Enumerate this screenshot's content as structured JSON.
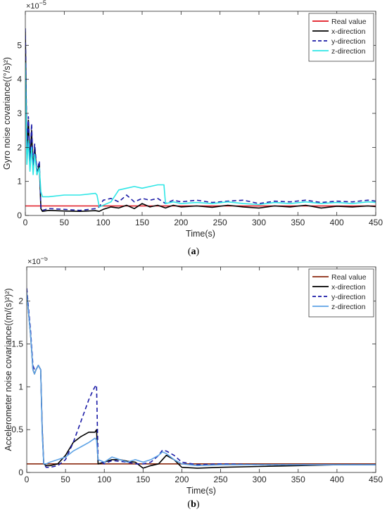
{
  "chart_data": [
    {
      "type": "line",
      "caption_prefix": "(",
      "caption_letter": "a",
      "caption_suffix": ")",
      "exponent": "×10",
      "exponent_power": "−5",
      "xlabel": "Time(s)",
      "ylabel": "Gyro noise covariance((°/s)²)",
      "xlim": [
        0,
        450
      ],
      "ylim": [
        0,
        6
      ],
      "xticks": [
        0,
        50,
        100,
        150,
        200,
        250,
        300,
        350,
        400,
        450
      ],
      "yticks": [
        0,
        1,
        2,
        3,
        4,
        5
      ],
      "legend_position": "top-right",
      "grid": false,
      "series": [
        {
          "name": "Real value",
          "color": "#e0151f",
          "dash": "solid",
          "x": [
            0,
            450
          ],
          "y": [
            0.28,
            0.28
          ]
        },
        {
          "name": "x-direction",
          "color": "#000000",
          "dash": "solid",
          "x": [
            0,
            2,
            4,
            6,
            8,
            10,
            12,
            15,
            18,
            20,
            22,
            30,
            50,
            70,
            90,
            95,
            100,
            110,
            120,
            130,
            140,
            150,
            160,
            170,
            180,
            190,
            200,
            220,
            240,
            260,
            280,
            300,
            320,
            340,
            360,
            380,
            400,
            420,
            440,
            450
          ],
          "y": [
            5.4,
            1.8,
            2.8,
            1.5,
            2.5,
            1.3,
            2.0,
            1.2,
            1.5,
            0.2,
            0.12,
            0.15,
            0.13,
            0.12,
            0.14,
            0.12,
            0.18,
            0.25,
            0.22,
            0.3,
            0.2,
            0.35,
            0.25,
            0.3,
            0.22,
            0.3,
            0.25,
            0.28,
            0.24,
            0.3,
            0.25,
            0.22,
            0.28,
            0.25,
            0.3,
            0.22,
            0.27,
            0.25,
            0.28,
            0.26
          ]
        },
        {
          "name": "y-direction",
          "color": "#1a1aa6",
          "dash": "dashed",
          "x": [
            0,
            2,
            4,
            6,
            8,
            10,
            12,
            15,
            18,
            20,
            22,
            30,
            50,
            70,
            90,
            95,
            100,
            110,
            120,
            130,
            140,
            150,
            160,
            170,
            180,
            190,
            200,
            220,
            240,
            260,
            280,
            300,
            320,
            340,
            360,
            380,
            400,
            420,
            440,
            450
          ],
          "y": [
            5.5,
            2.0,
            2.9,
            1.6,
            2.7,
            1.4,
            2.1,
            1.3,
            1.6,
            0.25,
            0.15,
            0.2,
            0.18,
            0.15,
            0.2,
            0.25,
            0.45,
            0.5,
            0.4,
            0.6,
            0.4,
            0.5,
            0.45,
            0.5,
            0.35,
            0.45,
            0.4,
            0.45,
            0.38,
            0.42,
            0.45,
            0.35,
            0.42,
            0.4,
            0.45,
            0.38,
            0.42,
            0.4,
            0.45,
            0.42
          ]
        },
        {
          "name": "z-direction",
          "color": "#2ee6e6",
          "dash": "solid",
          "x": [
            0,
            2,
            4,
            6,
            8,
            10,
            12,
            15,
            18,
            20,
            22,
            30,
            50,
            70,
            90,
            92,
            95,
            100,
            110,
            120,
            130,
            140,
            150,
            160,
            170,
            178,
            180,
            190,
            200,
            220,
            240,
            260,
            280,
            300,
            320,
            340,
            360,
            380,
            400,
            420,
            440,
            450
          ],
          "y": [
            4.5,
            1.5,
            2.2,
            1.3,
            2.0,
            1.2,
            1.8,
            1.2,
            1.4,
            0.7,
            0.55,
            0.55,
            0.6,
            0.6,
            0.65,
            0.6,
            0.25,
            0.3,
            0.4,
            0.75,
            0.8,
            0.85,
            0.8,
            0.85,
            0.9,
            0.9,
            0.35,
            0.4,
            0.35,
            0.38,
            0.35,
            0.4,
            0.35,
            0.32,
            0.38,
            0.35,
            0.4,
            0.35,
            0.38,
            0.35,
            0.4,
            0.38
          ]
        }
      ]
    },
    {
      "type": "line",
      "caption_prefix": "(",
      "caption_letter": "b",
      "caption_suffix": ")",
      "exponent": "×10",
      "exponent_power": "−5",
      "xlabel": "Time(s)",
      "ylabel": "Accelerometer noise covariance((m/(s)²)²)",
      "xlim": [
        0,
        450
      ],
      "ylim": [
        0,
        2.4
      ],
      "xticks": [
        0,
        50,
        100,
        150,
        200,
        250,
        300,
        350,
        400,
        450
      ],
      "yticks": [
        0,
        0.5,
        1,
        1.5,
        2
      ],
      "ytick_labels": [
        "0",
        "0.5",
        "1",
        "1.5",
        "2"
      ],
      "legend_position": "top-right",
      "grid": false,
      "series": [
        {
          "name": "Real value",
          "color": "#8b2a10",
          "dash": "solid",
          "x": [
            0,
            450
          ],
          "y": [
            0.1,
            0.1
          ]
        },
        {
          "name": "x-direction",
          "color": "#000000",
          "dash": "solid",
          "x": [
            0,
            5,
            8,
            10,
            12,
            15,
            18,
            20,
            22,
            25,
            30,
            40,
            50,
            60,
            70,
            80,
            88,
            90,
            92,
            100,
            110,
            120,
            130,
            140,
            150,
            160,
            170,
            180,
            190,
            200,
            220,
            250,
            300,
            350,
            400,
            450
          ],
          "y": [
            2.1,
            1.6,
            1.2,
            1.15,
            1.2,
            1.25,
            1.2,
            0.5,
            0.1,
            0.08,
            0.08,
            0.1,
            0.2,
            0.35,
            0.42,
            0.47,
            0.47,
            0.5,
            0.1,
            0.12,
            0.15,
            0.15,
            0.13,
            0.12,
            0.05,
            0.08,
            0.1,
            0.2,
            0.15,
            0.06,
            0.05,
            0.06,
            0.07,
            0.08,
            0.09,
            0.09
          ]
        },
        {
          "name": "y-direction",
          "color": "#1a1aa6",
          "dash": "dashed",
          "x": [
            0,
            5,
            8,
            10,
            12,
            15,
            18,
            20,
            22,
            25,
            30,
            40,
            50,
            60,
            70,
            80,
            85,
            88,
            90,
            92,
            100,
            110,
            120,
            130,
            140,
            150,
            160,
            170,
            175,
            180,
            190,
            200,
            220,
            250,
            300,
            350,
            400,
            450
          ],
          "y": [
            2.15,
            1.65,
            1.25,
            1.2,
            1.2,
            1.25,
            1.2,
            0.5,
            0.1,
            0.06,
            0.06,
            0.08,
            0.15,
            0.35,
            0.6,
            0.85,
            0.95,
            1.0,
            1.02,
            0.15,
            0.1,
            0.14,
            0.13,
            0.12,
            0.1,
            0.1,
            0.12,
            0.2,
            0.26,
            0.25,
            0.2,
            0.12,
            0.09,
            0.1,
            0.09,
            0.09,
            0.09,
            0.09
          ]
        },
        {
          "name": "z-direction",
          "color": "#5ea3e6",
          "dash": "solid",
          "x": [
            0,
            5,
            8,
            10,
            12,
            15,
            18,
            20,
            22,
            25,
            30,
            40,
            50,
            60,
            70,
            80,
            88,
            90,
            92,
            100,
            110,
            120,
            130,
            140,
            150,
            160,
            170,
            175,
            180,
            190,
            200,
            220,
            250,
            300,
            350,
            400,
            450
          ],
          "y": [
            2.1,
            1.6,
            1.2,
            1.15,
            1.2,
            1.25,
            1.2,
            0.45,
            0.1,
            0.1,
            0.12,
            0.15,
            0.18,
            0.25,
            0.3,
            0.35,
            0.4,
            0.38,
            0.15,
            0.12,
            0.18,
            0.15,
            0.12,
            0.15,
            0.12,
            0.15,
            0.2,
            0.24,
            0.22,
            0.15,
            0.1,
            0.08,
            0.09,
            0.09,
            0.09,
            0.09,
            0.09
          ]
        }
      ]
    }
  ]
}
